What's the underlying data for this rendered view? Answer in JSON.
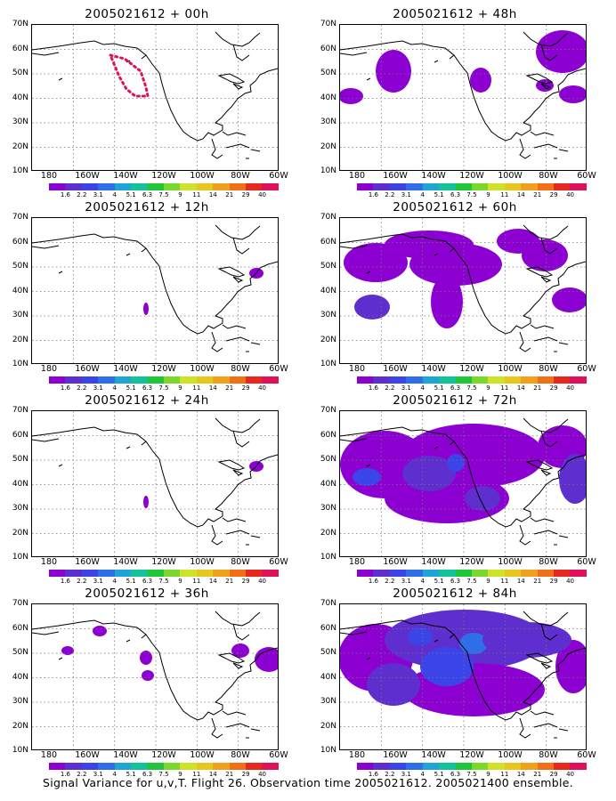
{
  "footer": "Signal Variance for u,v,T. Flight 26. Observation time 2005021612. 2005021400 ensemble.",
  "lat_labels": [
    "70N",
    "60N",
    "50N",
    "40N",
    "30N",
    "20N",
    "10N"
  ],
  "lon_labels": [
    "180",
    "160W",
    "140W",
    "120W",
    "100W",
    "80W",
    "60W"
  ],
  "colorbar": {
    "colors": [
      "#8c00d2",
      "#5e2ecf",
      "#3a44e8",
      "#2e6fe8",
      "#1fa4d8",
      "#12c39a",
      "#1fc63a",
      "#7ad82a",
      "#cfe22a",
      "#e8c71c",
      "#f0a01a",
      "#f07018",
      "#e8281e",
      "#e0105a"
    ],
    "labels": [
      "1.6",
      "2.2",
      "3.1",
      "4",
      "5.1",
      "6.3",
      "7.5",
      "9",
      "11",
      "14",
      "21",
      "29",
      "40"
    ]
  },
  "panels": [
    {
      "title": "2005021612 + 00h",
      "level": 0
    },
    {
      "title": "2005021612 + 48h",
      "level": 3
    },
    {
      "title": "2005021612 + 12h",
      "level": 1
    },
    {
      "title": "2005021612 + 60h",
      "level": 4
    },
    {
      "title": "2005021612 + 24h",
      "level": 1
    },
    {
      "title": "2005021612 + 72h",
      "level": 5
    },
    {
      "title": "2005021612 + 36h",
      "level": 2
    },
    {
      "title": "2005021612 + 84h",
      "level": 6
    }
  ]
}
